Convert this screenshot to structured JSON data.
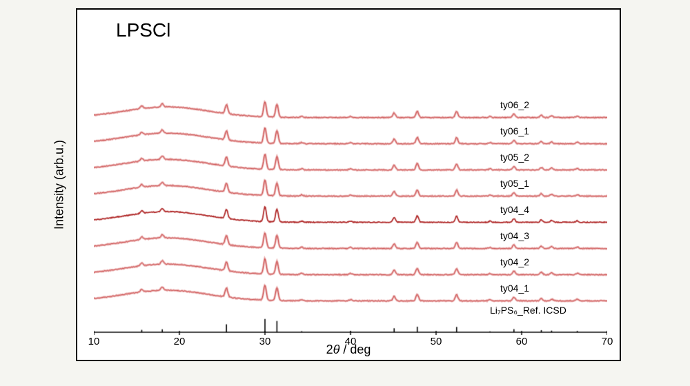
{
  "type": "xrd-stacked",
  "title": "LPSCl",
  "xlabel_prefix": "2",
  "xlabel_theta": "θ",
  "xlabel_suffix": " / deg",
  "ylabel": "Intensity (arb.u.)",
  "xlim": [
    10,
    70
  ],
  "xticks": [
    10,
    20,
    30,
    40,
    50,
    60,
    70
  ],
  "tick_fontsize": 15,
  "label_fontsize": 18,
  "title_fontsize": 28,
  "background_color": "#ffffff",
  "outer_background_color": "#f5f5f1",
  "border_color": "#000000",
  "trace_colors": {
    "sample_line": "#c94848",
    "sample_glow": "#e8a7a7",
    "ty04_4_line": "#b02828",
    "ref_line": "#000000"
  },
  "peak_centers": [
    15.6,
    18.0,
    25.5,
    30.0,
    31.4,
    34.3,
    40.0,
    45.1,
    47.8,
    52.4,
    56.3,
    59.1,
    62.3,
    63.5,
    66.5
  ],
  "peak_heights": [
    18,
    22,
    60,
    100,
    85,
    8,
    8,
    30,
    42,
    40,
    7,
    24,
    16,
    12,
    10
  ],
  "hump_center": 18.5,
  "hump_width": 7.0,
  "hump_height_factor": 0.55,
  "noise_amplitude": 0.6,
  "trace_offset": 38,
  "ref_offset": 4,
  "ref_scale": 0.6,
  "traces": [
    {
      "id": "ty06_2",
      "label": "ty06_2",
      "color_key": "sample_line",
      "hump": true
    },
    {
      "id": "ty06_1",
      "label": "ty06_1",
      "color_key": "sample_line",
      "hump": true
    },
    {
      "id": "ty05_2",
      "label": "ty05_2",
      "color_key": "sample_line",
      "hump": true
    },
    {
      "id": "ty05_1",
      "label": "ty05_1",
      "color_key": "sample_line",
      "hump": true
    },
    {
      "id": "ty04_4",
      "label": "ty04_4",
      "color_key": "ty04_4_line",
      "hump": true,
      "bold": true
    },
    {
      "id": "ty04_3",
      "label": "ty04_3",
      "color_key": "sample_line",
      "hump": true
    },
    {
      "id": "ty04_2",
      "label": "ty04_2",
      "color_key": "sample_line",
      "hump": true
    },
    {
      "id": "ty04_1",
      "label": "ty04_1",
      "color_key": "sample_line",
      "hump": true
    }
  ],
  "ref_trace": {
    "label": "Li₇PS₆_Ref. ICSD",
    "color_key": "ref_line"
  }
}
